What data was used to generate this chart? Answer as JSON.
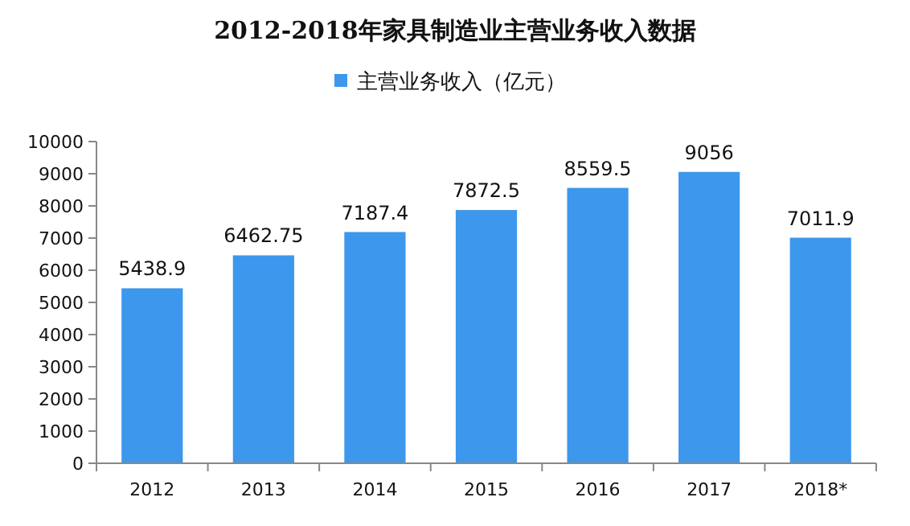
{
  "chart_data": {
    "type": "bar",
    "title": "2012-2018年家具制造业主营业务收入数据",
    "categories": [
      "2012",
      "2013",
      "2014",
      "2015",
      "2016",
      "2017",
      "2018*"
    ],
    "series": [
      {
        "name": "主营业务收入（亿元）",
        "color": "#3d97ec",
        "values": [
          5438.9,
          6462.75,
          7187.4,
          7872.5,
          8559.5,
          9056,
          7011.9
        ]
      }
    ],
    "ylim": [
      0,
      10000
    ],
    "yticks": [
      0,
      1000,
      2000,
      3000,
      4000,
      5000,
      6000,
      7000,
      8000,
      9000,
      10000
    ],
    "data_labels": true,
    "legend": "top",
    "grid": false
  }
}
